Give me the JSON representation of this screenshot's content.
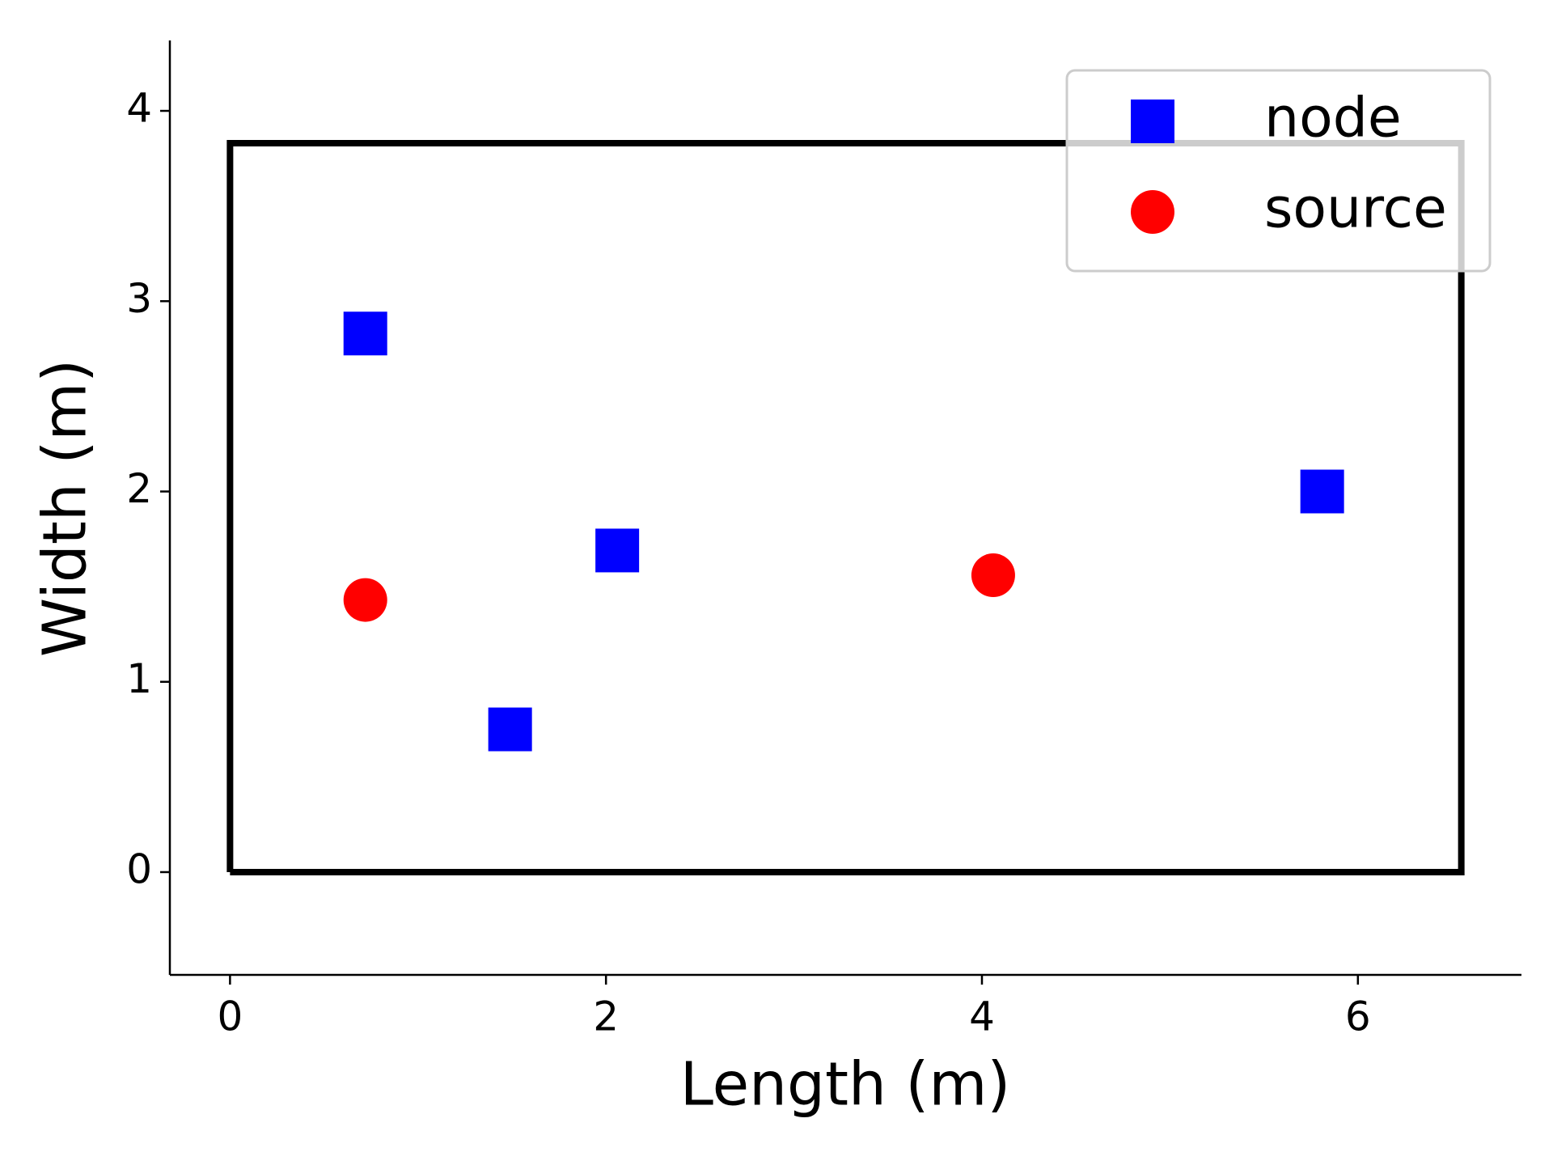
{
  "chart_data": {
    "type": "scatter",
    "xlabel": "Length (m)",
    "ylabel": "Width (m)",
    "xlim": [
      -0.32,
      6.87
    ],
    "ylim": [
      -0.54,
      4.37
    ],
    "xticks": [
      0,
      2,
      4,
      6
    ],
    "yticks": [
      0,
      1,
      2,
      3,
      4
    ],
    "grid": false,
    "legend": "upper right",
    "series": [
      {
        "name": "node",
        "marker": "square",
        "color": "#0000ff",
        "x": [
          0.72,
          1.49,
          2.06,
          5.81
        ],
        "values": [
          2.83,
          0.75,
          1.69,
          2.0
        ]
      },
      {
        "name": "source",
        "marker": "circle",
        "color": "#ff0000",
        "x": [
          0.72,
          4.06
        ],
        "values": [
          1.43,
          1.56
        ]
      },
      {
        "marker": "line",
        "color": "#000000",
        "x": [
          0,
          6.55,
          6.55,
          0,
          0
        ],
        "values": [
          0,
          0,
          3.83,
          3.83,
          0
        ]
      }
    ]
  }
}
